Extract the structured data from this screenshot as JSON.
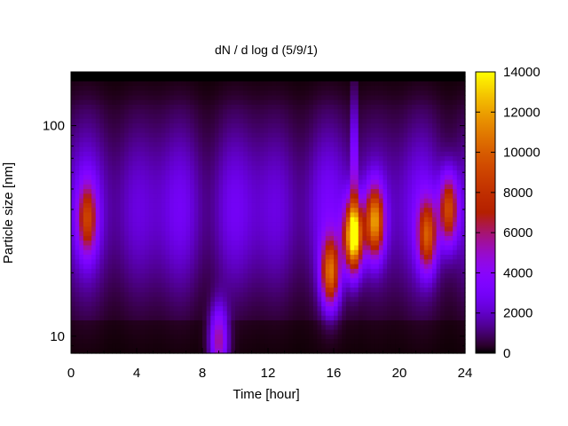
{
  "chart_data": {
    "type": "heatmap",
    "title": "dN / d log d (5/9/1)",
    "xlabel": "Time [hour]",
    "ylabel": "Particle size [nm]",
    "xlim": [
      0,
      24
    ],
    "ylim": [
      8.3,
      180
    ],
    "y_scale": "log",
    "x_ticks": [
      0,
      4,
      8,
      12,
      16,
      20,
      24
    ],
    "y_ticks": [
      10,
      100
    ],
    "colorbar": {
      "range": [
        0,
        14000
      ],
      "ticks": [
        0,
        2000,
        4000,
        6000,
        8000,
        10000,
        12000,
        14000
      ],
      "colormap": "gnuplot (black-purple-red-orange-yellow)"
    },
    "features": [
      {
        "time": 1.0,
        "size_nm": 36,
        "value": 6000
      },
      {
        "time": 9.0,
        "size_nm": 9.5,
        "value": 5500
      },
      {
        "time": 15.8,
        "size_nm": 20,
        "value": 9000
      },
      {
        "time": 17.2,
        "size_nm": 30,
        "value": 13500
      },
      {
        "time": 18.5,
        "size_nm": 35,
        "value": 10000
      },
      {
        "time": 21.7,
        "size_nm": 30,
        "value": 7500
      },
      {
        "time": 23.0,
        "size_nm": 40,
        "value": 8000
      }
    ]
  }
}
